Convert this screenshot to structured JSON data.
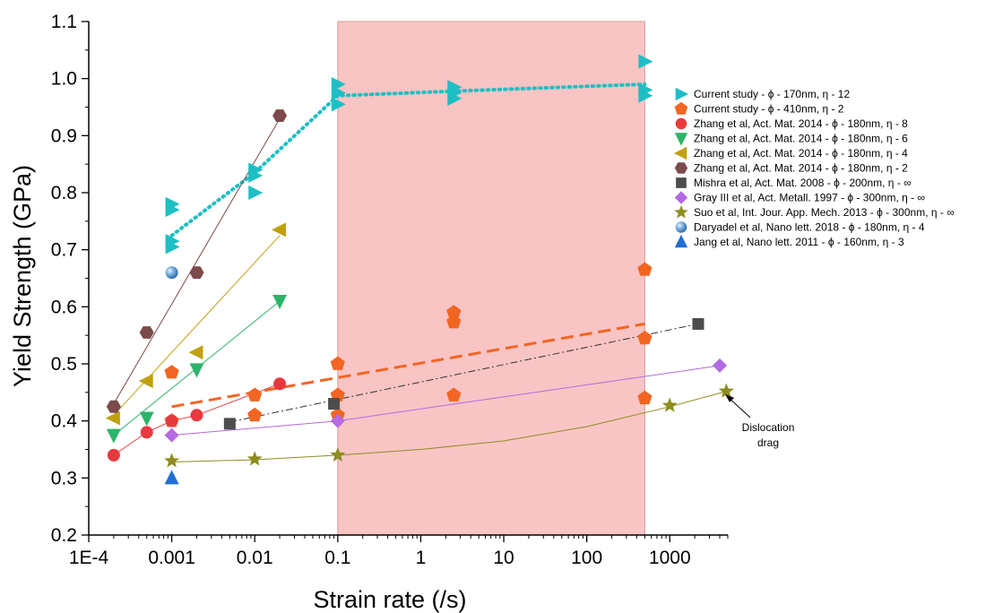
{
  "chart_data": {
    "type": "scatter",
    "xlabel": "Strain rate (/s)",
    "ylabel": "Yield Strength (GPa)",
    "xscale": "log",
    "xlim": [
      0.0001,
      5000
    ],
    "ylim": [
      0.2,
      1.1
    ],
    "xticks": [
      {
        "value": 0.0001,
        "label": "1E-4"
      },
      {
        "value": 0.001,
        "label": "0.001"
      },
      {
        "value": 0.01,
        "label": "0.01"
      },
      {
        "value": 0.1,
        "label": "0.1"
      },
      {
        "value": 1,
        "label": "1"
      },
      {
        "value": 10,
        "label": "10"
      },
      {
        "value": 100,
        "label": "100"
      },
      {
        "value": 1000,
        "label": "1000"
      }
    ],
    "yticks": [
      {
        "value": 0.2,
        "label": "0.2"
      },
      {
        "value": 0.3,
        "label": "0.3"
      },
      {
        "value": 0.4,
        "label": "0.4"
      },
      {
        "value": 0.5,
        "label": "0.5"
      },
      {
        "value": 0.6,
        "label": "0.6"
      },
      {
        "value": 0.7,
        "label": "0.7"
      },
      {
        "value": 0.8,
        "label": "0.8"
      },
      {
        "value": 0.9,
        "label": "0.9"
      },
      {
        "value": 1.0,
        "label": "1.0"
      },
      {
        "value": 1.1,
        "label": "1.1"
      }
    ],
    "grid": false,
    "legend_position": "right",
    "highlight_band": {
      "x": [
        0.1,
        500
      ],
      "color": "#f9c4c4"
    },
    "annotation": {
      "text": [
        "Dislocation",
        "drag"
      ],
      "x": 4000,
      "y": 0.45
    },
    "series": [
      {
        "name": "Current study - ϕ - 170nm, η - 12",
        "marker": "triangle-right",
        "color": "#1cbfc4",
        "points": [
          [
            0.001,
            0.78
          ],
          [
            0.001,
            0.77
          ],
          [
            0.001,
            0.715
          ],
          [
            0.001,
            0.705
          ],
          [
            0.01,
            0.84
          ],
          [
            0.01,
            0.83
          ],
          [
            0.01,
            0.8
          ],
          [
            0.1,
            0.99
          ],
          [
            0.1,
            0.975
          ],
          [
            0.1,
            0.955
          ],
          [
            2.5,
            0.985
          ],
          [
            2.5,
            0.975
          ],
          [
            2.5,
            0.965
          ],
          [
            500,
            1.03
          ],
          [
            500,
            0.98
          ],
          [
            500,
            0.97
          ]
        ],
        "trend": {
          "points": [
            [
              0.001,
              0.725
            ],
            [
              0.01,
              0.835
            ],
            [
              0.1,
              0.97
            ],
            [
              2.5,
              0.978
            ],
            [
              500,
              0.99
            ]
          ],
          "style": "dotted",
          "width": 4
        }
      },
      {
        "name": "Current study - ϕ - 410nm, η - 2",
        "marker": "pentagon",
        "color": "#f26522",
        "points": [
          [
            0.001,
            0.485
          ],
          [
            0.001,
            0.4
          ],
          [
            0.01,
            0.445
          ],
          [
            0.01,
            0.41
          ],
          [
            0.1,
            0.5
          ],
          [
            0.1,
            0.445
          ],
          [
            0.1,
            0.41
          ],
          [
            2.5,
            0.59
          ],
          [
            2.5,
            0.573
          ],
          [
            2.5,
            0.445
          ],
          [
            500,
            0.665
          ],
          [
            500,
            0.545
          ],
          [
            500,
            0.44
          ]
        ],
        "trend": {
          "points": [
            [
              0.001,
              0.425
            ],
            [
              500,
              0.57
            ]
          ],
          "style": "dashed",
          "width": 3
        }
      },
      {
        "name": "Zhang et al, Act. Mat. 2014 - ϕ - 180nm, η - 8",
        "marker": "circle",
        "color": "#e8393f",
        "points": [
          [
            0.0002,
            0.34
          ],
          [
            0.0005,
            0.38
          ],
          [
            0.001,
            0.4
          ],
          [
            0.002,
            0.41
          ],
          [
            0.02,
            0.465
          ]
        ],
        "trend": {
          "points": [
            [
              0.0002,
              0.34
            ],
            [
              0.0005,
              0.38
            ],
            [
              0.001,
              0.4
            ],
            [
              0.002,
              0.41
            ],
            [
              0.02,
              0.465
            ]
          ],
          "style": "solid",
          "width": 1
        }
      },
      {
        "name": "Zhang et al, Act. Mat. 2014 - ϕ - 180nm, η - 6",
        "marker": "triangle-down",
        "color": "#2db36a",
        "points": [
          [
            0.0002,
            0.375
          ],
          [
            0.0005,
            0.405
          ],
          [
            0.002,
            0.49
          ],
          [
            0.02,
            0.61
          ]
        ],
        "trend": {
          "points": [
            [
              0.0002,
              0.375
            ],
            [
              0.02,
              0.61
            ]
          ],
          "style": "solid",
          "width": 1
        }
      },
      {
        "name": "Zhang et al, Act. Mat. 2014 - ϕ - 180nm, η - 4",
        "marker": "triangle-left",
        "color": "#c1a010",
        "points": [
          [
            0.0002,
            0.405
          ],
          [
            0.0005,
            0.47
          ],
          [
            0.002,
            0.52
          ],
          [
            0.02,
            0.735
          ]
        ],
        "trend": {
          "points": [
            [
              0.0002,
              0.41
            ],
            [
              0.02,
              0.725
            ]
          ],
          "style": "solid",
          "width": 1
        }
      },
      {
        "name": "Zhang et al, Act. Mat. 2014 - ϕ - 180nm, η - 2",
        "marker": "hexagon",
        "color": "#7b4a4a",
        "points": [
          [
            0.0002,
            0.425
          ],
          [
            0.0005,
            0.555
          ],
          [
            0.002,
            0.66
          ],
          [
            0.02,
            0.935
          ]
        ],
        "trend": {
          "points": [
            [
              0.0002,
              0.43
            ],
            [
              0.02,
              0.93
            ]
          ],
          "style": "solid",
          "width": 1
        }
      },
      {
        "name": "Mishra et al, Act. Mat. 2008 - ϕ - 200nm, η - ∞",
        "marker": "square",
        "color": "#4d4d4d",
        "points": [
          [
            0.005,
            0.395
          ],
          [
            0.09,
            0.43
          ],
          [
            2200,
            0.57
          ]
        ],
        "trend": {
          "points": [
            [
              0.005,
              0.398
            ],
            [
              2200,
              0.57
            ]
          ],
          "style": "dashdot",
          "width": 1
        }
      },
      {
        "name": "Gray III et al, Act. Metall. 1997 - ϕ - 300nm, η - ∞",
        "marker": "diamond",
        "color": "#b36ae2",
        "points": [
          [
            0.001,
            0.375
          ],
          [
            0.1,
            0.4
          ],
          [
            4000,
            0.497
          ]
        ],
        "trend": {
          "points": [
            [
              0.001,
              0.375
            ],
            [
              0.1,
              0.4
            ],
            [
              4000,
              0.497
            ]
          ],
          "style": "solid",
          "width": 1
        }
      },
      {
        "name": "Suo et al, Int. Jour. App. Mech. 2013 - ϕ - 300nm, η - ∞",
        "marker": "star",
        "color": "#8d8d1f",
        "points": [
          [
            0.001,
            0.33
          ],
          [
            0.01,
            0.333
          ],
          [
            0.1,
            0.34
          ],
          [
            1000,
            0.427
          ],
          [
            4800,
            0.452
          ]
        ],
        "trend": {
          "points": [
            [
              0.001,
              0.328
            ],
            [
              0.01,
              0.332
            ],
            [
              0.1,
              0.34
            ],
            [
              1,
              0.35
            ],
            [
              10,
              0.365
            ],
            [
              100,
              0.39
            ],
            [
              1000,
              0.425
            ],
            [
              4800,
              0.452
            ]
          ],
          "style": "solid",
          "width": 1
        }
      },
      {
        "name": "Daryadel et al, Nano lett. 2018 - ϕ - 180nm, η - 4",
        "marker": "sphere",
        "color": "#5b9bd5",
        "points": [
          [
            0.001,
            0.66
          ]
        ]
      },
      {
        "name": "Jang et al, Nano lett. 2011 - ϕ - 160nm, η - 3",
        "marker": "triangle-up",
        "color": "#1f6fd1",
        "points": [
          [
            0.001,
            0.3
          ]
        ]
      }
    ]
  }
}
